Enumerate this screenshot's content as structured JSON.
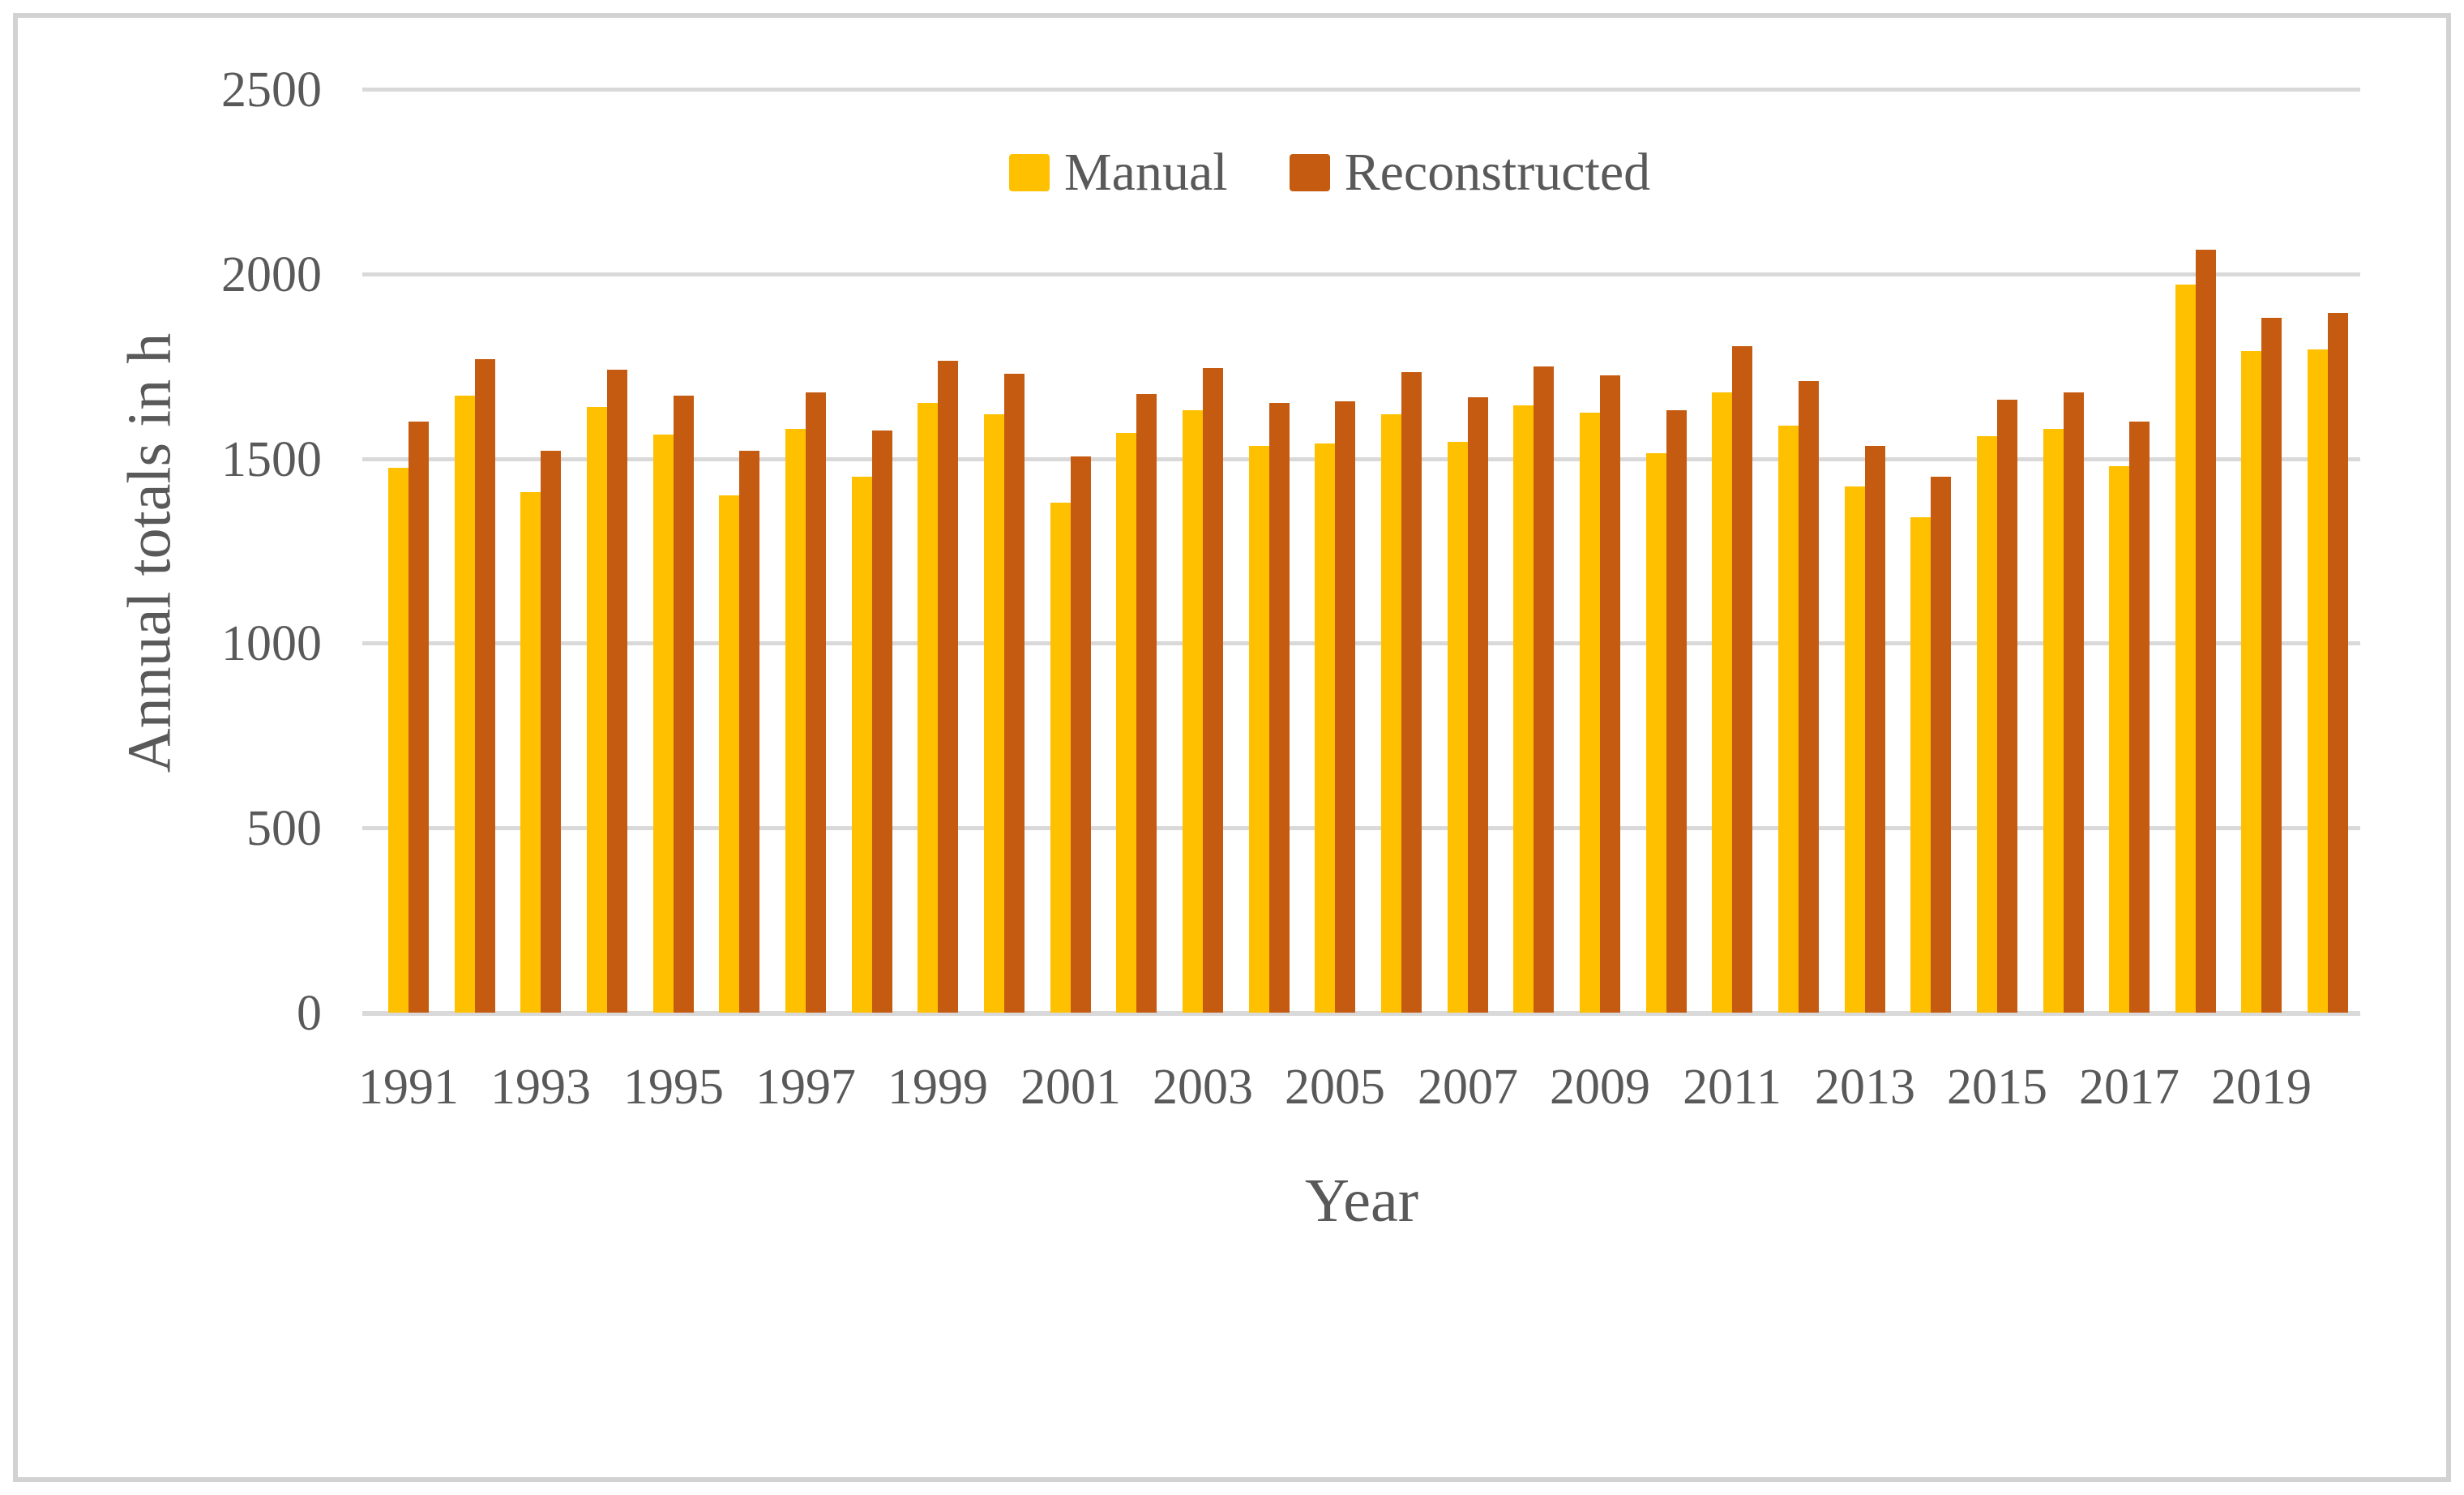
{
  "chart_data": {
    "type": "bar",
    "title": "",
    "xlabel": "Year",
    "ylabel": "Annual totals in h",
    "ylim": [
      0,
      2500
    ],
    "yticks": [
      0,
      500,
      1000,
      1500,
      2000,
      2500
    ],
    "grid": true,
    "legend_position": "top-center",
    "xtick_label_every": 2,
    "categories": [
      "1991",
      "1992",
      "1993",
      "1994",
      "1995",
      "1996",
      "1997",
      "1998",
      "1999",
      "2000",
      "2001",
      "2002",
      "2003",
      "2004",
      "2005",
      "2006",
      "2007",
      "2008",
      "2009",
      "2010",
      "2011",
      "2012",
      "2013",
      "2014",
      "2015",
      "2016",
      "2017",
      "2018",
      "2019",
      "2020"
    ],
    "series": [
      {
        "name": "Manual",
        "color": "#FFC000",
        "values": [
          1475,
          1670,
          1410,
          1640,
          1565,
          1400,
          1580,
          1450,
          1650,
          1620,
          1380,
          1570,
          1630,
          1535,
          1540,
          1620,
          1545,
          1645,
          1625,
          1515,
          1680,
          1590,
          1425,
          1340,
          1560,
          1580,
          1480,
          1970,
          1790,
          1795
        ]
      },
      {
        "name": "Reconstructed",
        "color": "#C55A11",
        "values": [
          1600,
          1770,
          1520,
          1740,
          1670,
          1520,
          1680,
          1575,
          1765,
          1730,
          1505,
          1675,
          1745,
          1650,
          1655,
          1735,
          1665,
          1750,
          1725,
          1630,
          1805,
          1710,
          1535,
          1450,
          1660,
          1680,
          1600,
          2065,
          1880,
          1895
        ]
      }
    ]
  },
  "colors": {
    "grid": "#d9d9d9",
    "text": "#595959",
    "frame_border": "#d2d2d2",
    "background": "#ffffff"
  }
}
